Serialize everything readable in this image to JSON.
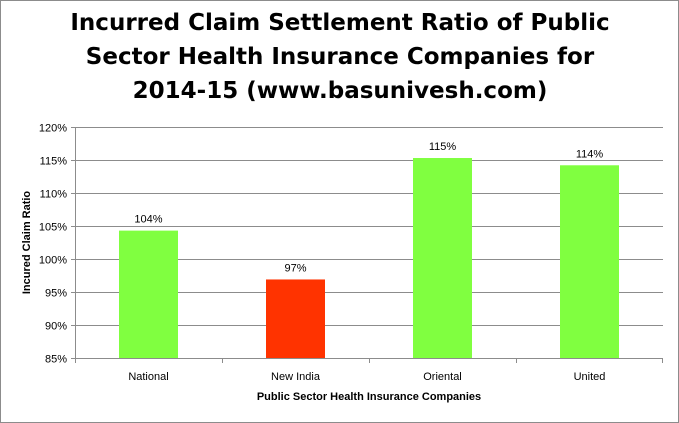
{
  "chart_data": {
    "type": "bar",
    "title": "Incurred Claim Settlement Ratio of Public Sector Health Insurance Companies for 2014-15 (www.basunivesh.com)",
    "title_lines": [
      "Incurred Claim Settlement Ratio of Public",
      "Sector Health Insurance Companies for",
      "2014-15 (www.basunivesh.com)"
    ],
    "xlabel": "Public Sector Health Insurance Companies",
    "ylabel": "Incured Claim Ratio",
    "categories": [
      "National",
      "New India",
      "Oriental",
      "United"
    ],
    "values": [
      104.3,
      96.9,
      115.3,
      114.2
    ],
    "data_labels": [
      "104%",
      "97%",
      "115%",
      "114%"
    ],
    "bar_colors": [
      "#80ff40",
      "#ff3300",
      "#80ff40",
      "#80ff40"
    ],
    "ylim": [
      85,
      120
    ],
    "y_ticks": [
      85,
      90,
      95,
      100,
      105,
      110,
      115,
      120
    ],
    "y_tick_labels": [
      "85%",
      "90%",
      "95%",
      "100%",
      "105%",
      "110%",
      "115%",
      "120%"
    ],
    "grid": true,
    "legend": "none"
  }
}
